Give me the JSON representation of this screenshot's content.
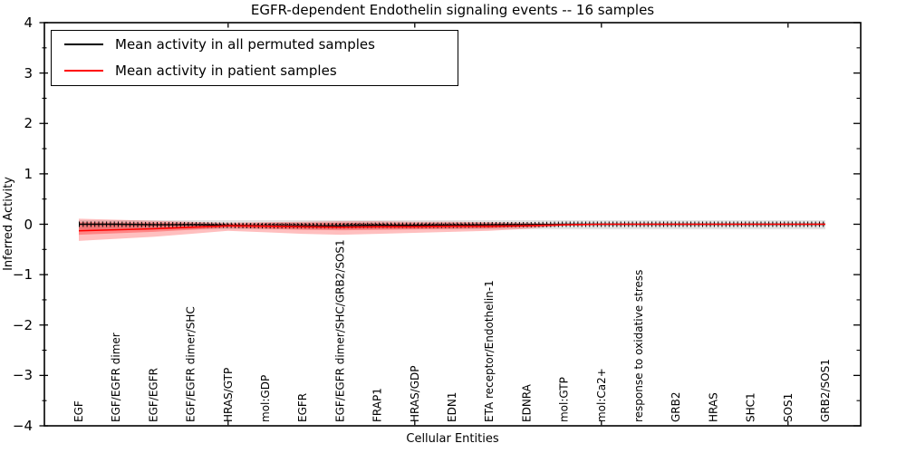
{
  "figure": {
    "title": "EGFR-dependent Endothelin signaling events -- 16 samples",
    "xlabel": "Cellular Entities",
    "ylabel": "Inferred Activity"
  },
  "legend": {
    "items": [
      {
        "label": "Mean activity in all permuted samples",
        "color": "#000000"
      },
      {
        "label": "Mean activity in patient samples",
        "color": "#ff0000"
      }
    ]
  },
  "chart_data": {
    "type": "line",
    "title": "EGFR-dependent Endothelin signaling events -- 16 samples",
    "xlabel": "Cellular Entities",
    "ylabel": "Inferred Activity",
    "ylim": [
      -4,
      4
    ],
    "yticks": [
      4,
      3,
      2,
      1,
      0,
      -1,
      -2,
      -3,
      -4
    ],
    "grid": false,
    "legend_position": "upper left",
    "categories": [
      "EGF",
      "EGF/EGFR dimer",
      "EGF/EGFR",
      "EGF/EGFR dimer/SHC",
      "HRAS/GTP",
      "mol:GDP",
      "EGFR",
      "EGF/EGFR dimer/SHC/GRB2/SOS1",
      "FRAP1",
      "HRAS/GDP",
      "EDN1",
      "ETA receptor/Endothelin-1",
      "EDNRA",
      "mol:GTP",
      "mol:Ca2+",
      "response to oxidative stress",
      "GRB2",
      "HRAS",
      "SHC1",
      "SOS1",
      "GRB2/SOS1"
    ],
    "series": [
      {
        "name": "Mean activity in all permuted samples",
        "color": "#000000",
        "style": "solid_with_errorbar_ticks_and_dotted_zero",
        "values": [
          0,
          0,
          -0.01,
          -0.01,
          -0.02,
          -0.03,
          -0.03,
          -0.03,
          -0.02,
          -0.02,
          -0.02,
          -0.01,
          -0.01,
          0,
          0,
          0,
          0,
          0,
          0,
          0,
          0
        ],
        "band": {
          "color": "#000000",
          "opacity": 0.11,
          "upper": [
            0.08,
            0.08,
            0.08,
            0.08,
            0.08,
            0.08,
            0.08,
            0.08,
            0.08,
            0.08,
            0.08,
            0.08,
            0.08,
            0.08,
            0.08,
            0.08,
            0.08,
            0.08,
            0.08,
            0.08,
            0.08
          ],
          "lower": [
            -0.1,
            -0.1,
            -0.1,
            -0.1,
            -0.1,
            -0.1,
            -0.1,
            -0.1,
            -0.1,
            -0.1,
            -0.1,
            -0.1,
            -0.1,
            -0.1,
            -0.1,
            -0.1,
            -0.1,
            -0.1,
            -0.1,
            -0.1,
            -0.1
          ]
        }
      },
      {
        "name": "Mean activity in patient samples",
        "color": "#ff0000",
        "style": "solid",
        "values": [
          -0.13,
          -0.11,
          -0.09,
          -0.06,
          -0.03,
          -0.04,
          -0.05,
          -0.06,
          -0.05,
          -0.05,
          -0.04,
          -0.04,
          -0.03,
          -0.01,
          0,
          0,
          0,
          0,
          0,
          0,
          0
        ],
        "band": {
          "color": "#ff0000",
          "opacity": 0.25,
          "upper": [
            0.11,
            0.09,
            0.07,
            0.05,
            0.03,
            0.04,
            0.05,
            0.06,
            0.06,
            0.05,
            0.05,
            0.04,
            0.03,
            0.01,
            0.01,
            0.01,
            0.01,
            0.01,
            0.01,
            0.01,
            0.01
          ],
          "lower": [
            -0.33,
            -0.29,
            -0.25,
            -0.19,
            -0.13,
            -0.16,
            -0.19,
            -0.21,
            -0.19,
            -0.17,
            -0.15,
            -0.13,
            -0.09,
            -0.03,
            -0.01,
            -0.01,
            -0.01,
            -0.01,
            -0.01,
            -0.01,
            -0.01
          ]
        },
        "inner_band": {
          "color": "#ff0000",
          "opacity": 0.3,
          "upper": [
            0.04,
            0.03,
            0.03,
            0.02,
            0.01,
            0.02,
            0.02,
            0.03,
            0.02,
            0.02,
            0.02,
            0.02,
            0.01,
            0,
            0,
            0,
            0,
            0,
            0,
            0,
            0
          ],
          "lower": [
            -0.21,
            -0.18,
            -0.15,
            -0.11,
            -0.07,
            -0.09,
            -0.11,
            -0.12,
            -0.11,
            -0.1,
            -0.09,
            -0.08,
            -0.05,
            -0.02,
            -0.01,
            -0.01,
            -0.01,
            -0.01,
            -0.01,
            -0.01,
            -0.01
          ]
        }
      }
    ]
  }
}
